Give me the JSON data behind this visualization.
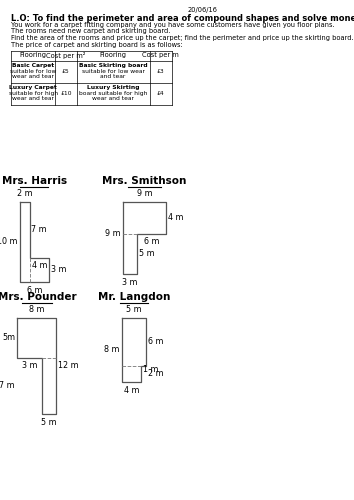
{
  "date": "20/06/16",
  "lo": "L.O: To find the perimeter and area of compound shapes and solve money problems.",
  "intro": [
    "You work for a carpet fitting company and you have some customers have given you floor plans.",
    "The rooms need new carpet and skirting board.",
    "Find the area of the rooms and price up the carpet; find the perimeter and price up the skirting board."
  ],
  "price_intro": "The price of carpet and skirting board is as follows:",
  "table_headers": [
    "Flooring",
    "Cost per m²",
    "Flooring",
    "Cost per m"
  ],
  "table_rows": [
    [
      "Basic Carpet\nsuitable for low\nwear and tear",
      "£5",
      "Basic Skirting board\nsuitable for low wear\nand tear",
      "£3"
    ],
    [
      "Luxury Carpet\nsuitable for high\nwear and tear",
      "£10",
      "Luxury Skirting\nboard suitable for high\nwear and tear",
      "£4"
    ]
  ],
  "bg_color": "#ffffff",
  "text_color": "#000000",
  "shape_color": "#555555",
  "dash_color": "#888888"
}
